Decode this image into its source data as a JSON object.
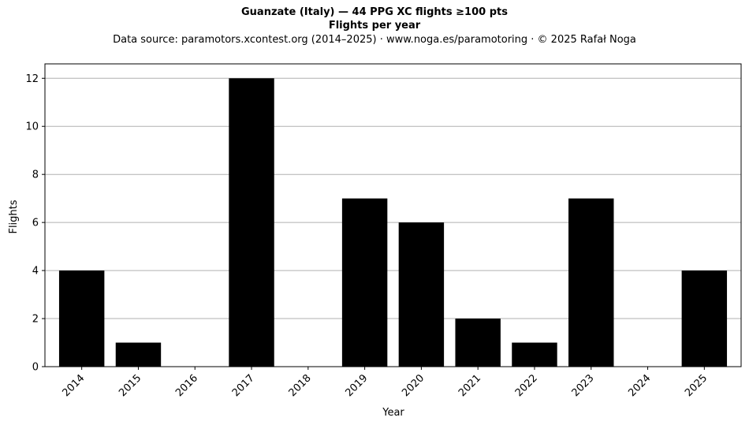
{
  "chart_data": {
    "type": "bar",
    "title": "Guanzate (Italy)  —  44 PPG XC flights ≥100 pts",
    "subtitle": "Flights per year",
    "source": "Data source: paramotors.xcontest.org (2014–2025)  ·  www.noga.es/paramotoring  ·  © 2025 Rafał Noga",
    "xlabel": "Year",
    "ylabel": "Flights",
    "categories": [
      "2014",
      "2015",
      "2016",
      "2017",
      "2018",
      "2019",
      "2020",
      "2021",
      "2022",
      "2023",
      "2024",
      "2025"
    ],
    "values": [
      4,
      1,
      0,
      12,
      0,
      7,
      6,
      2,
      1,
      7,
      0,
      4
    ],
    "ylim": [
      0,
      12.6
    ],
    "yticks": [
      0,
      2,
      4,
      6,
      8,
      10,
      12
    ],
    "grid": "horizontal",
    "bar_color": "#000000",
    "grid_color": "#b0b0b0"
  }
}
